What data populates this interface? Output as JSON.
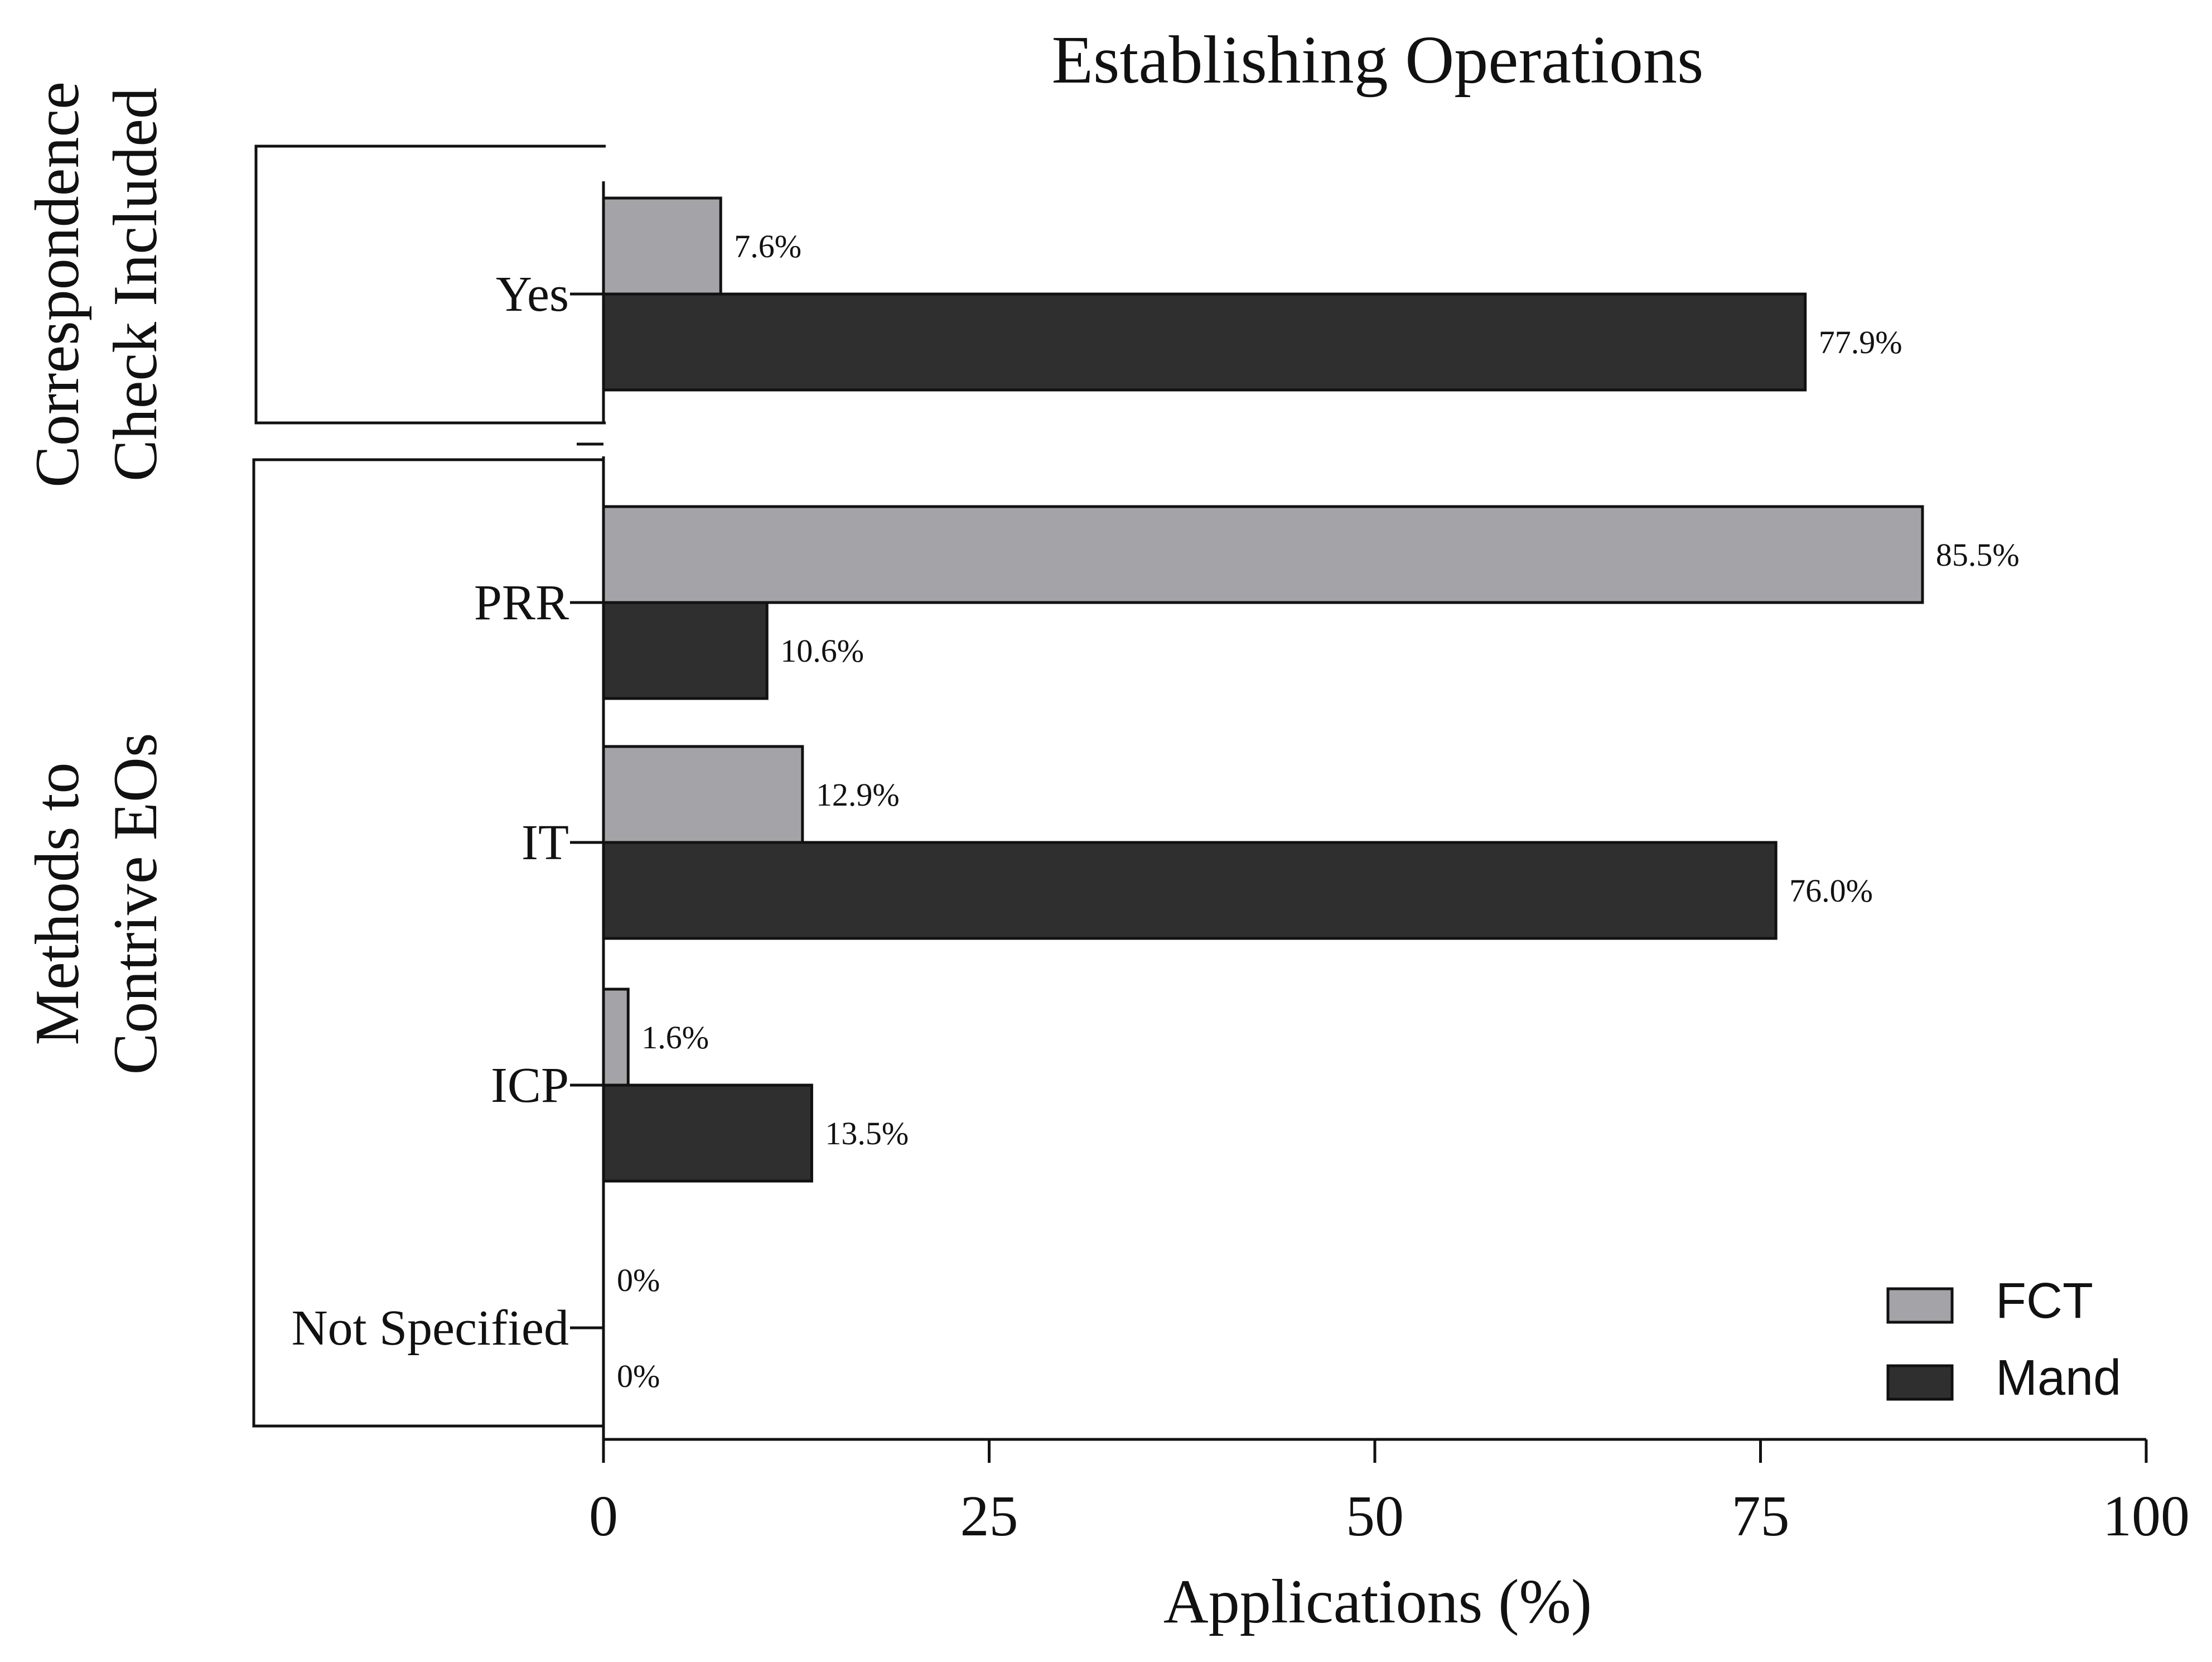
{
  "chart_data": {
    "type": "bar",
    "orientation": "horizontal",
    "title": "Establishing Operations",
    "xlabel": "Applications (%)",
    "xlim": [
      0,
      100
    ],
    "xticks": [
      "0",
      "25",
      "50",
      "75",
      "100"
    ],
    "xtick_values": [
      0,
      25,
      50,
      75,
      100
    ],
    "categories": [
      "Yes",
      "PRR",
      "IT",
      "ICP",
      "Not Specified"
    ],
    "groups": [
      {
        "label_lines": [
          "Correspondence",
          "Check Included"
        ],
        "categories": [
          "Yes"
        ]
      },
      {
        "label_lines": [
          "Methods to",
          "Contrive EOs"
        ],
        "categories": [
          "PRR",
          "IT",
          "ICP",
          "Not Specified"
        ]
      }
    ],
    "series": [
      {
        "name": "FCT",
        "color": "#a3a3a8",
        "values": [
          7.6,
          85.5,
          12.9,
          1.6,
          0
        ],
        "labels": [
          "7.6%",
          "85.5%",
          "12.9%",
          "1.6%",
          "0%"
        ]
      },
      {
        "name": "Mand",
        "color": "#2f2f2f",
        "values": [
          77.9,
          10.6,
          76.0,
          13.5,
          0
        ],
        "labels": [
          "77.9%",
          "10.6%",
          "76.0%",
          "13.5%",
          "0%"
        ]
      }
    ],
    "legend_position": "bottom-right"
  }
}
